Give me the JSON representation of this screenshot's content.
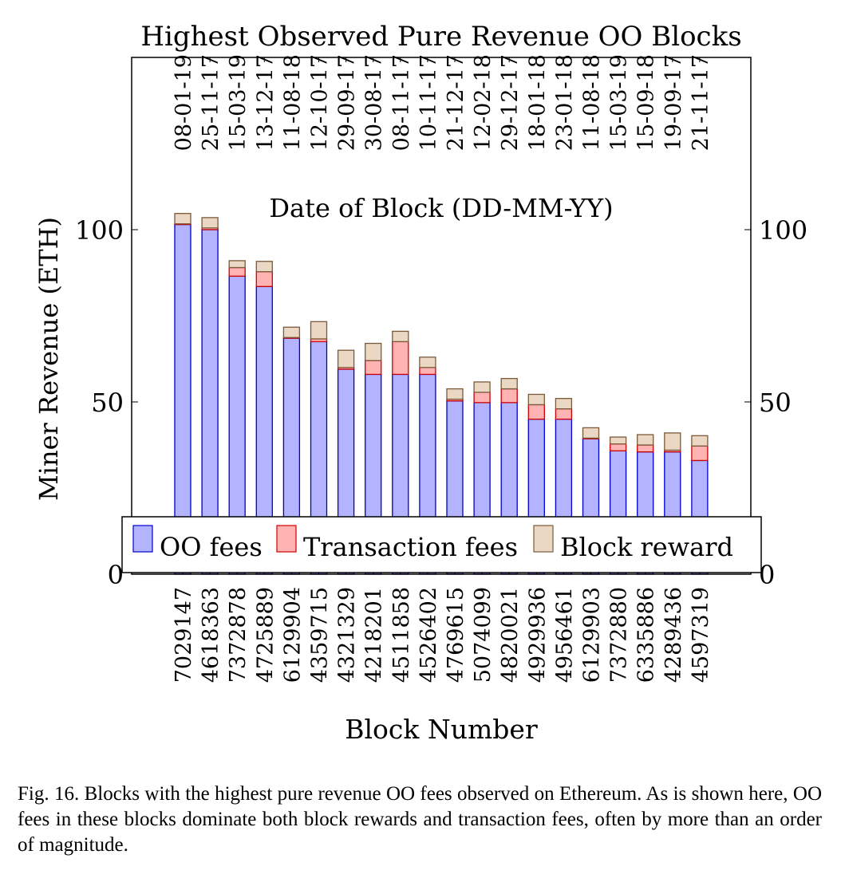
{
  "chart_data": {
    "type": "bar",
    "stacked": true,
    "title": "Highest Observed Pure Revenue OO Blocks",
    "xlabel": "Block Number",
    "x2label": "Date of Block (DD-MM-YY)",
    "ylabel": "Miner Revenue (ETH)",
    "ylim": [
      0,
      150
    ],
    "yticks": [
      0,
      50,
      100
    ],
    "grid": false,
    "legend_position": "bottom",
    "categories": [
      "7029147",
      "4618363",
      "7372878",
      "4725889",
      "6129904",
      "4359715",
      "4321329",
      "4218201",
      "4511858",
      "4526402",
      "4769615",
      "5074099",
      "4820021",
      "4929936",
      "4956461",
      "6129903",
      "7372880",
      "6335886",
      "4289436",
      "4597319"
    ],
    "dates": [
      "08-01-19",
      "25-11-17",
      "15-03-19",
      "13-12-17",
      "11-08-18",
      "12-10-17",
      "29-09-17",
      "30-08-17",
      "08-11-17",
      "10-11-17",
      "21-12-17",
      "12-02-18",
      "29-12-17",
      "18-01-18",
      "23-01-18",
      "11-08-18",
      "15-03-19",
      "15-09-18",
      "19-09-17",
      "21-11-17"
    ],
    "series": [
      {
        "name": "OO fees",
        "color": "#b3b3ff",
        "edge": "#0000cc",
        "values": [
          101.5,
          100.0,
          86.5,
          83.5,
          68.5,
          67.5,
          59.5,
          58.0,
          58.0,
          58.0,
          50.3,
          49.8,
          49.8,
          45.0,
          45.0,
          39.3,
          35.8,
          35.5,
          35.5,
          33.0
        ]
      },
      {
        "name": "Transaction fees",
        "color": "#ffb3b3",
        "edge": "#cc0000",
        "values": [
          0.2,
          0.5,
          2.5,
          4.3,
          0.2,
          0.8,
          0.5,
          4.0,
          9.5,
          2.0,
          0.5,
          3.0,
          4.0,
          4.2,
          3.0,
          0.2,
          2.0,
          2.0,
          0.5,
          4.2
        ]
      },
      {
        "name": "Block reward",
        "color": "#ead8c4",
        "edge": "#7a5a3a",
        "values": [
          3.0,
          3.0,
          2.0,
          3.0,
          3.0,
          5.0,
          5.0,
          5.0,
          3.0,
          3.0,
          3.0,
          3.0,
          3.0,
          3.0,
          3.0,
          3.0,
          2.0,
          3.0,
          5.0,
          3.0
        ]
      }
    ]
  },
  "caption": "Fig. 16.  Blocks with the highest pure revenue OO fees observed on Ethereum. As is shown here, OO fees in these blocks dominate both block rewards and transaction fees, often by more than an order of magnitude."
}
